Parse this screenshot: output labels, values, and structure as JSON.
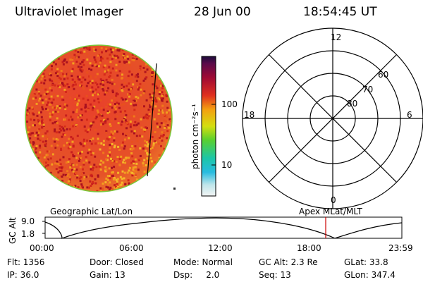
{
  "header": {
    "instrument": "Ultraviolet Imager",
    "date": "28 Jun 00",
    "time": "18:54:45 UT"
  },
  "colorbar": {
    "unit": "photon cm⁻²s⁻¹",
    "ticks": [
      "100",
      "10"
    ]
  },
  "polar_plot": {
    "mlt_labels": [
      "12",
      "18",
      "6",
      "0"
    ],
    "lat_labels": [
      "60",
      "70",
      "80"
    ]
  },
  "timeline": {
    "left_title": "Geographic Lat/Lon",
    "right_title": "Apex MLat/MLT",
    "y_label": "GC Alt",
    "y_ticks": [
      "9.0",
      "1.8"
    ],
    "x_ticks": [
      "00:00",
      "06:00",
      "12:00",
      "18:00",
      "23:59"
    ],
    "marker_time": "18:54:45",
    "marker_color": "#cc0000"
  },
  "status": {
    "rows": [
      [
        "Flt: 1356",
        "Door: Closed",
        "Mode: Normal",
        "GC Alt: 2.3 Re",
        "GLat: 33.8"
      ],
      [
        "IP: 36.0",
        "Gain: 13",
        "Dsp:     2.0",
        "Seq: 13",
        "GLon: 347.4"
      ]
    ]
  }
}
